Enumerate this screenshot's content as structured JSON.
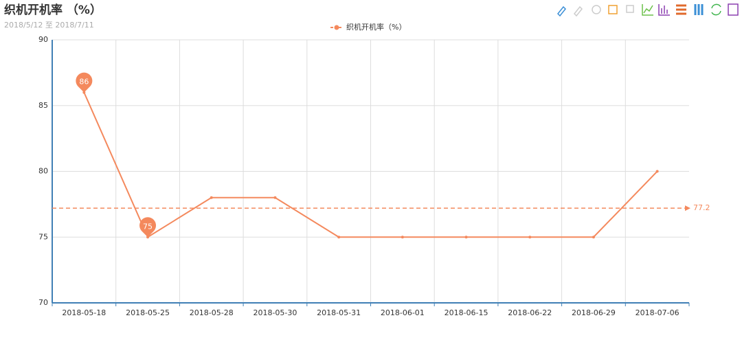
{
  "chart_data": {
    "type": "line",
    "title": "织机开机率 （%）",
    "subtitle": "2018/5/12 至 2018/7/11",
    "categories": [
      "2018-05-18",
      "2018-05-25",
      "2018-05-28",
      "2018-05-30",
      "2018-05-31",
      "2018-06-01",
      "2018-06-15",
      "2018-06-22",
      "2018-06-29",
      "2018-07-06"
    ],
    "series": [
      {
        "name": "织机开机率（%）",
        "color": "#f4895d",
        "values": [
          86,
          75,
          78,
          78,
          75,
          75,
          75,
          75,
          75,
          80
        ]
      }
    ],
    "average_line": 77.2,
    "ylim": [
      70,
      90
    ],
    "yticks": [
      70,
      75,
      80,
      85,
      90
    ],
    "grid": true,
    "legend": "top"
  }
}
